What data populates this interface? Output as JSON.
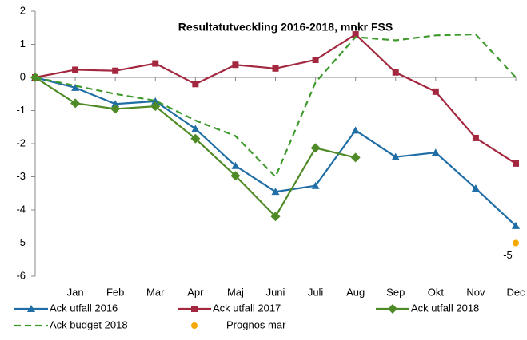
{
  "chart_data": {
    "type": "line",
    "title": "Resultatutveckling 2016-2018, mnkr FSS",
    "categories": [
      null,
      "Jan",
      "Feb",
      "Mar",
      "Apr",
      "Maj",
      "Juni",
      "Juli",
      "Aug",
      "Sep",
      "Okt",
      "Nov",
      "Dec"
    ],
    "ylim": [
      -6,
      2
    ],
    "yticks": [
      -6,
      -5,
      -4,
      -3,
      -2,
      -1,
      0,
      1,
      2
    ],
    "grid": false,
    "legend": "bottom",
    "series": [
      {
        "name": "Ack utfall 2016",
        "color": "#1f6ea5",
        "marker": "triangle",
        "dashed": false,
        "values": [
          0,
          -0.31,
          -0.8,
          -0.72,
          -1.55,
          -2.67,
          -3.45,
          -3.27,
          -1.6,
          -2.4,
          -2.27,
          -3.35,
          -4.48
        ]
      },
      {
        "name": "Ack utfall 2017",
        "color": "#a3283f",
        "marker": "square",
        "dashed": false,
        "values": [
          0,
          0.23,
          0.2,
          0.42,
          -0.2,
          0.38,
          0.27,
          0.53,
          1.3,
          0.15,
          -0.43,
          -1.83,
          -2.6
        ]
      },
      {
        "name": "Ack utfall 2018",
        "color": "#4e8a26",
        "marker": "diamond",
        "dashed": false,
        "values": [
          0,
          -0.78,
          -0.95,
          -0.87,
          -1.85,
          -2.97,
          -4.2,
          -2.13,
          -2.42,
          null,
          null,
          null,
          null
        ]
      },
      {
        "name": "Ack budget 2018",
        "color": "#3f9a2e",
        "marker": "none",
        "dashed": true,
        "values": [
          0,
          -0.25,
          -0.5,
          -0.7,
          -1.3,
          -1.77,
          -3.0,
          -0.15,
          1.22,
          1.12,
          1.27,
          1.3,
          0
        ]
      },
      {
        "name": "Prognos mar",
        "color": "#f5a800",
        "marker": "circle",
        "dashed": false,
        "show_labels": true,
        "values": [
          null,
          null,
          null,
          null,
          null,
          null,
          null,
          null,
          null,
          null,
          null,
          null,
          -5
        ]
      }
    ]
  }
}
